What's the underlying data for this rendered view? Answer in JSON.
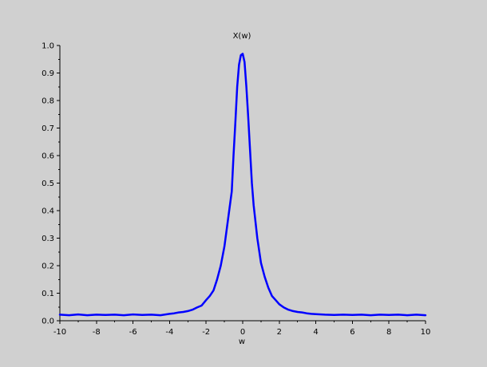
{
  "chart_data": {
    "type": "line",
    "title": "X(w)",
    "xlabel": "w",
    "ylabel": "",
    "xlim": [
      -10,
      10
    ],
    "ylim": [
      0,
      1.0
    ],
    "x_ticks": [
      "-10",
      "-8",
      "-6",
      "-4",
      "-2",
      "0",
      "2",
      "4",
      "6",
      "8",
      "10"
    ],
    "y_ticks": [
      "0.0",
      "0.1",
      "0.2",
      "0.3",
      "0.4",
      "0.5",
      "0.6",
      "0.7",
      "0.8",
      "0.9",
      "1.0"
    ],
    "grid": false,
    "legend": "none",
    "series": [
      {
        "color": "#0000ff",
        "x": [
          -10,
          -9.5,
          -9,
          -8.5,
          -8,
          -7.5,
          -7,
          -6.5,
          -6,
          -5.5,
          -5,
          -4.5,
          -4,
          -3.75,
          -3.5,
          -3.25,
          -3,
          -2.75,
          -2.5,
          -2.25,
          -2,
          -1.8,
          -1.6,
          -1.4,
          -1.2,
          -1,
          -0.8,
          -0.6,
          -0.5,
          -0.4,
          -0.3,
          -0.2,
          -0.1,
          0,
          0.1,
          0.2,
          0.3,
          0.4,
          0.5,
          0.6,
          0.8,
          1,
          1.2,
          1.4,
          1.6,
          1.8,
          2,
          2.25,
          2.5,
          2.75,
          3,
          3.25,
          3.5,
          3.75,
          4,
          4.5,
          5,
          5.5,
          6,
          6.5,
          7,
          7.5,
          8,
          8.5,
          9,
          9.5,
          10
        ],
        "y": [
          0.022,
          0.02,
          0.023,
          0.02,
          0.022,
          0.021,
          0.022,
          0.02,
          0.023,
          0.021,
          0.022,
          0.02,
          0.025,
          0.027,
          0.03,
          0.032,
          0.035,
          0.04,
          0.048,
          0.055,
          0.075,
          0.09,
          0.11,
          0.15,
          0.2,
          0.27,
          0.37,
          0.47,
          0.6,
          0.72,
          0.85,
          0.93,
          0.965,
          0.97,
          0.94,
          0.85,
          0.74,
          0.62,
          0.5,
          0.42,
          0.3,
          0.21,
          0.16,
          0.12,
          0.09,
          0.075,
          0.06,
          0.048,
          0.04,
          0.035,
          0.032,
          0.03,
          0.027,
          0.025,
          0.024,
          0.022,
          0.021,
          0.022,
          0.021,
          0.022,
          0.02,
          0.022,
          0.021,
          0.022,
          0.02,
          0.022,
          0.02
        ]
      }
    ]
  }
}
